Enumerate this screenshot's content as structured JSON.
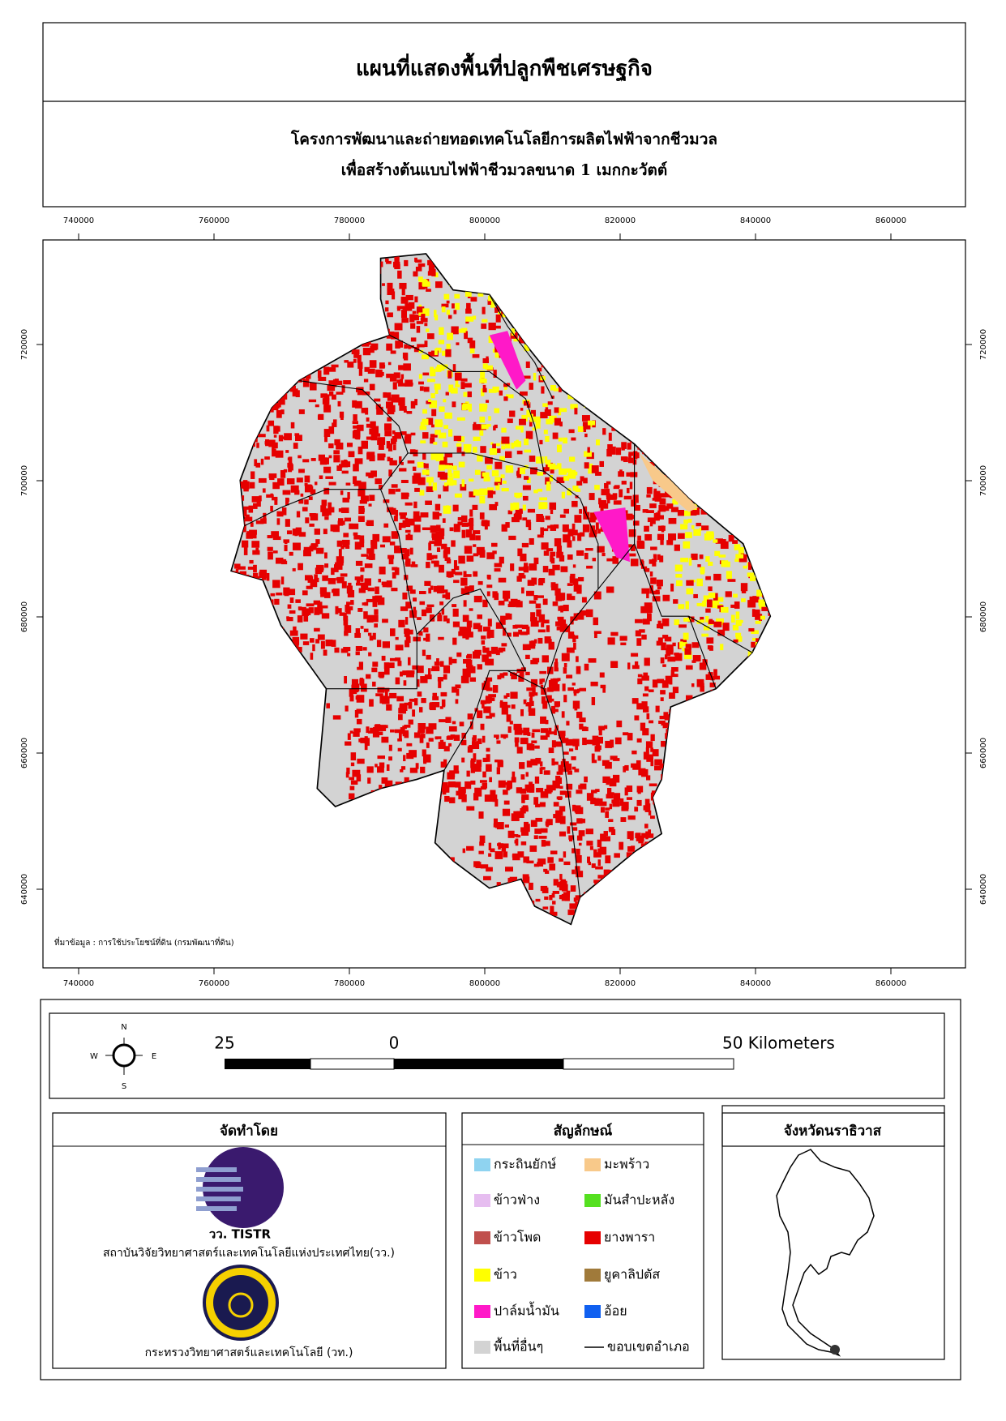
{
  "header": {
    "title": "แผนที่แสดงพื้นที่ปลูกพืชเศรษฐกิจ",
    "subtitle_lines": [
      "โครงการพัฒนาและถ่ายทอดเทคโนโลยีการผลิตไฟฟ้าจากชีวมวล",
      "เพื่อสร้างต้นแบบไฟฟ้าชีวมวลขนาด 1 เมกกะวัตต์"
    ]
  },
  "map": {
    "x_ticks": [
      740000,
      760000,
      780000,
      800000,
      820000,
      840000,
      860000
    ],
    "y_ticks": [
      720000,
      700000,
      680000,
      660000,
      640000
    ],
    "source": "ที่มาข้อมูล : การใช้ประโยชน์ที่ดิน  (กรมพัฒนาที่ดิน)"
  },
  "compass": {
    "n": "N",
    "s": "S",
    "e": "E",
    "w": "W"
  },
  "scale_bar": {
    "labels": [
      "25",
      "0",
      "50 Kilometers"
    ]
  },
  "organizer": {
    "title": "จัดทำโดย",
    "logo_text": "วว. TISTR",
    "org1": "สถาบันวิจัยวิทยาศาสตร์และเทคโนโลยีแห่งประเทศไทย(วว.)",
    "org2": "กระทรวงวิทยาศาสตร์และเทคโนโลยี (วท.)"
  },
  "legend": {
    "title": "สัญลักษณ์",
    "items": [
      {
        "label": "กระถินยักษ์",
        "color": "#8fd3f0"
      },
      {
        "label": "มะพร้าว",
        "color": "#f8c98a"
      },
      {
        "label": "ข้าวฟ่าง",
        "color": "#e6bdf0"
      },
      {
        "label": "มันสำปะหลัง",
        "color": "#55e020"
      },
      {
        "label": "ข้าวโพด",
        "color": "#c0504d"
      },
      {
        "label": "ยางพารา",
        "color": "#e60000"
      },
      {
        "label": "ข้าว",
        "color": "#ffff00"
      },
      {
        "label": "ยูคาลิปตัส",
        "color": "#a07a3a"
      },
      {
        "label": "ปาล์มน้ำมัน",
        "color": "#ff19c8"
      },
      {
        "label": "อ้อย",
        "color": "#1060f0"
      },
      {
        "label": "พื้นที่อื่นๆ",
        "color": "#d3d3d3"
      }
    ],
    "boundary_label": "ขอบเขตอำเภอ"
  },
  "inset": {
    "title": "จังหวัดนราธิวาส"
  }
}
